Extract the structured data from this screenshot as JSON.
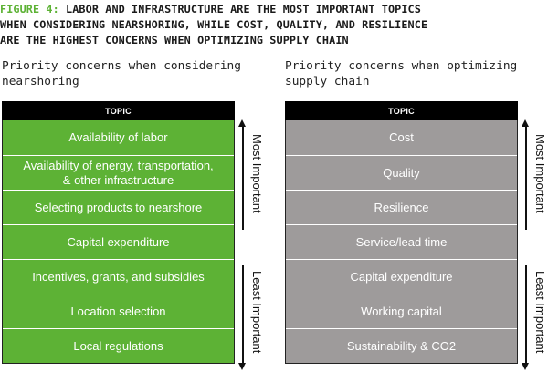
{
  "figure": {
    "label": "FIGURE 4:",
    "title_line1": "LABOR AND INFRASTRUCTURE ARE THE MOST IMPORTANT TOPICS",
    "title_line2": "WHEN CONSIDERING NEARSHORING, WHILE COST, QUALITY, AND RESILIENCE",
    "title_line3": "ARE THE HIGHEST CONCERNS WHEN OPTIMIZING SUPPLY CHAIN",
    "label_color": "#5db235"
  },
  "left": {
    "subtitle_line1": "Priority concerns when considering",
    "subtitle_line2": "nearshoring",
    "header": "TOPIC",
    "color": "#5db235",
    "rows": [
      "Availability of labor",
      "Availability of energy, transportation,",
      "Selecting products to nearshore",
      "Capital expenditure",
      "Incentives, grants, and subsidies",
      "Location selection",
      "Local regulations"
    ],
    "row2_line2": "& other infrastructure"
  },
  "right": {
    "subtitle_line1": "Priority concerns when optimizing",
    "subtitle_line2": "supply chain",
    "header": "TOPIC",
    "color": "#9e9b9b",
    "rows": [
      "Cost",
      "Quality",
      "Resilience",
      "Service/lead time",
      "Capital expenditure",
      "Working capital",
      "Sustainability & CO2"
    ]
  },
  "axis": {
    "most": "Most Important",
    "least": "Least Important"
  }
}
